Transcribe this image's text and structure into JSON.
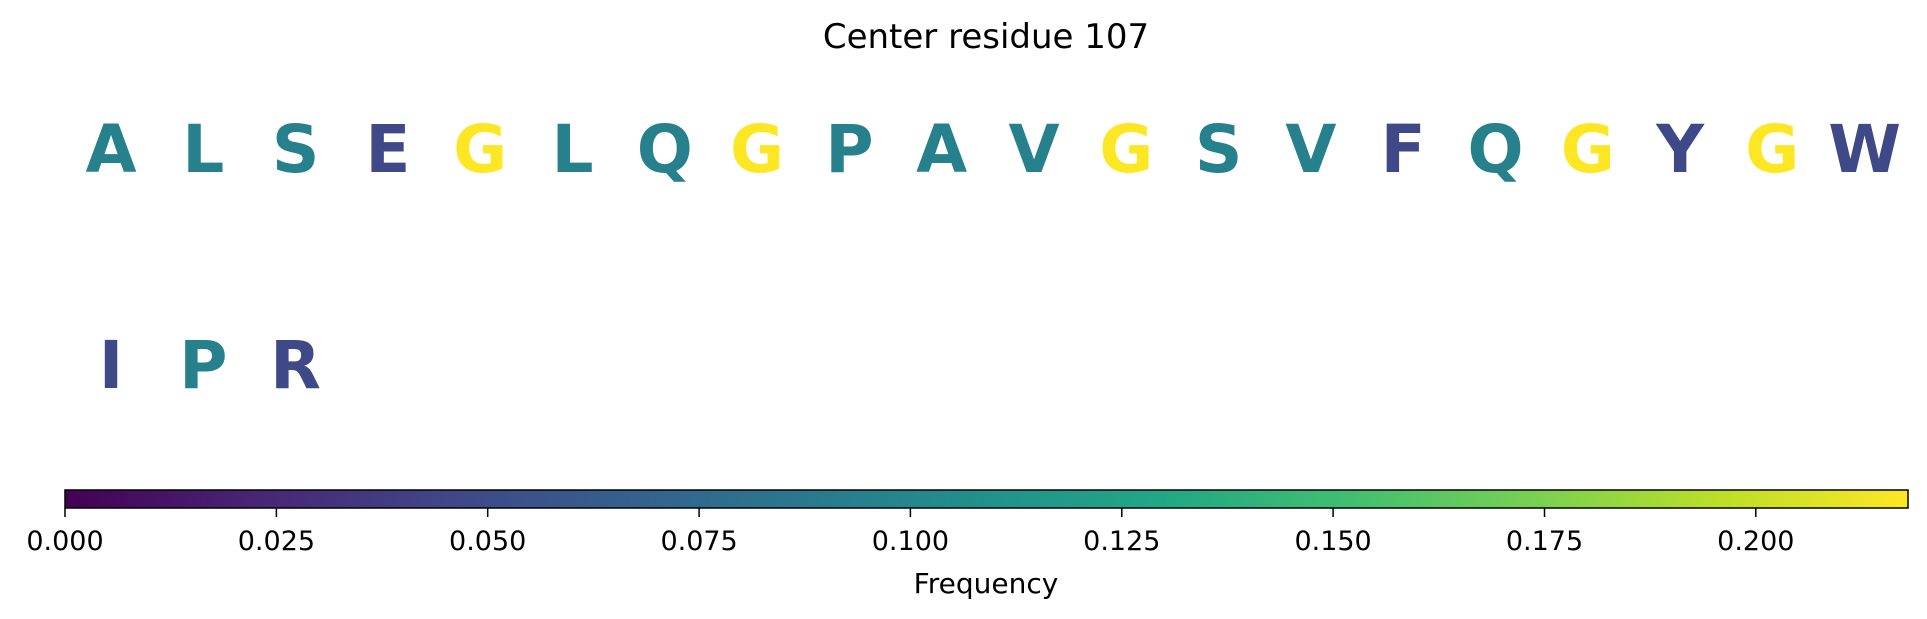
{
  "chart_data": {
    "type": "heatmap",
    "title": "Center residue 107",
    "rows": [
      {
        "residues": [
          {
            "letter": "A",
            "frequency": 0.095
          },
          {
            "letter": "L",
            "frequency": 0.095
          },
          {
            "letter": "S",
            "frequency": 0.095
          },
          {
            "letter": "E",
            "frequency": 0.048
          },
          {
            "letter": "G",
            "frequency": 0.218
          },
          {
            "letter": "L",
            "frequency": 0.095
          },
          {
            "letter": "Q",
            "frequency": 0.095
          },
          {
            "letter": "G",
            "frequency": 0.218
          },
          {
            "letter": "P",
            "frequency": 0.095
          },
          {
            "letter": "A",
            "frequency": 0.095
          },
          {
            "letter": "V",
            "frequency": 0.095
          },
          {
            "letter": "G",
            "frequency": 0.218
          },
          {
            "letter": "S",
            "frequency": 0.095
          },
          {
            "letter": "V",
            "frequency": 0.095
          },
          {
            "letter": "F",
            "frequency": 0.048
          },
          {
            "letter": "Q",
            "frequency": 0.095
          },
          {
            "letter": "G",
            "frequency": 0.218
          },
          {
            "letter": "Y",
            "frequency": 0.048
          },
          {
            "letter": "G",
            "frequency": 0.218
          },
          {
            "letter": "W",
            "frequency": 0.048
          }
        ]
      },
      {
        "residues": [
          {
            "letter": "I",
            "frequency": 0.048
          },
          {
            "letter": "P",
            "frequency": 0.095
          },
          {
            "letter": "R",
            "frequency": 0.048
          }
        ]
      }
    ],
    "colorbar": {
      "colormap": "viridis",
      "min": 0,
      "max": 0.218,
      "ticks": [
        "0.000",
        "0.025",
        "0.050",
        "0.075",
        "0.100",
        "0.125",
        "0.150",
        "0.175",
        "0.200"
      ],
      "label": "Frequency",
      "orientation": "horizontal",
      "placement": "bottom"
    }
  }
}
